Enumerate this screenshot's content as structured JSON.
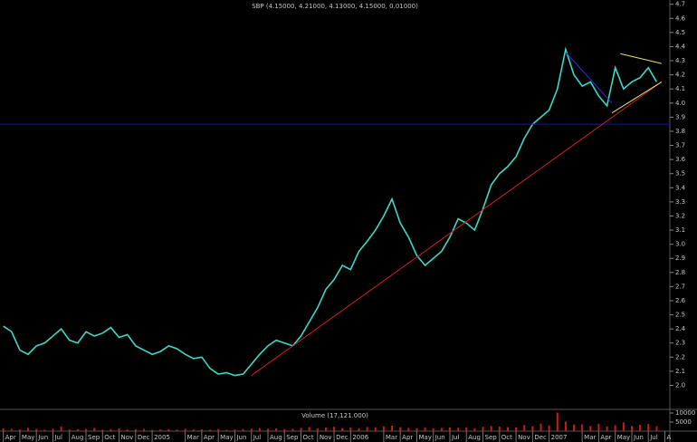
{
  "chart_data": [
    {
      "type": "line",
      "title": "SBP (4.15000, 4.21000, 4.13000, 4.15000, 0.01000)",
      "color": "#3fd8c8",
      "x": [
        0,
        0.5,
        1,
        1.5,
        2,
        2.5,
        3,
        3.5,
        4,
        4.5,
        5,
        5.5,
        6,
        6.5,
        7,
        7.5,
        8,
        8.5,
        9,
        9.5,
        10,
        10.5,
        11,
        11.5,
        12,
        12.5,
        13,
        13.5,
        14,
        14.5,
        15,
        15.5,
        16,
        16.5,
        17,
        17.5,
        18,
        18.5,
        19,
        19.5,
        20,
        20.5,
        21,
        21.5,
        22,
        22.5,
        23,
        23.5,
        24,
        24.5,
        25,
        25.5,
        26,
        26.5,
        27,
        27.5,
        28,
        28.5,
        29,
        29.5,
        30,
        30.5,
        31,
        31.5,
        32,
        32.5,
        33,
        33.5,
        34,
        34.5,
        35,
        35.5,
        36,
        36.5,
        37,
        37.5,
        38,
        38.5,
        39,
        39.5
      ],
      "values": [
        2.42,
        2.38,
        2.25,
        2.22,
        2.28,
        2.3,
        2.35,
        2.4,
        2.32,
        2.3,
        2.38,
        2.35,
        2.37,
        2.41,
        2.34,
        2.36,
        2.28,
        2.25,
        2.22,
        2.24,
        2.28,
        2.26,
        2.22,
        2.19,
        2.2,
        2.12,
        2.08,
        2.09,
        2.07,
        2.08,
        2.15,
        2.22,
        2.28,
        2.32,
        2.3,
        2.28,
        2.35,
        2.45,
        2.55,
        2.68,
        2.75,
        2.85,
        2.82,
        2.95,
        3.02,
        3.1,
        3.2,
        3.32,
        3.15,
        3.05,
        2.92,
        2.85,
        2.9,
        2.95,
        3.05,
        3.18,
        3.15,
        3.1,
        3.25,
        3.42,
        3.5,
        3.55,
        3.62,
        3.75,
        3.85,
        3.9,
        3.95,
        4.1,
        4.38,
        4.2,
        4.12,
        4.15,
        4.05,
        3.98,
        4.25,
        4.1,
        4.15,
        4.18,
        4.25,
        4.15
      ],
      "xlim": [
        -0.2,
        40.3
      ],
      "ylim": [
        1.83,
        4.73
      ],
      "xticks": [
        {
          "value": 0,
          "label": "Apr"
        },
        {
          "value": 1,
          "label": "May"
        },
        {
          "value": 2,
          "label": "Jun"
        },
        {
          "value": 3,
          "label": "Jul"
        },
        {
          "value": 4,
          "label": "Aug"
        },
        {
          "value": 5,
          "label": "Sep"
        },
        {
          "value": 6,
          "label": "Oct"
        },
        {
          "value": 7,
          "label": "Nov"
        },
        {
          "value": 8,
          "label": "Dec"
        },
        {
          "value": 9,
          "label": "2005"
        },
        {
          "value": 11,
          "label": "Mar"
        },
        {
          "value": 12,
          "label": "Apr"
        },
        {
          "value": 13,
          "label": "May"
        },
        {
          "value": 14,
          "label": "Jun"
        },
        {
          "value": 15,
          "label": "Jul"
        },
        {
          "value": 16,
          "label": "Aug"
        },
        {
          "value": 17,
          "label": "Sep"
        },
        {
          "value": 18,
          "label": "Oct"
        },
        {
          "value": 19,
          "label": "Nov"
        },
        {
          "value": 20,
          "label": "Dec"
        },
        {
          "value": 21,
          "label": "2006"
        },
        {
          "value": 23,
          "label": "Mar"
        },
        {
          "value": 24,
          "label": "Apr"
        },
        {
          "value": 25,
          "label": "May"
        },
        {
          "value": 26,
          "label": "Jun"
        },
        {
          "value": 27,
          "label": "Jul"
        },
        {
          "value": 28,
          "label": "Aug"
        },
        {
          "value": 29,
          "label": "Sep"
        },
        {
          "value": 30,
          "label": "Oct"
        },
        {
          "value": 31,
          "label": "Nov"
        },
        {
          "value": 32,
          "label": "Dec"
        },
        {
          "value": 33,
          "label": "2007"
        },
        {
          "value": 35,
          "label": "Mar"
        },
        {
          "value": 36,
          "label": "Apr"
        },
        {
          "value": 37,
          "label": "May"
        },
        {
          "value": 38,
          "label": "Jun"
        },
        {
          "value": 39,
          "label": "Jul"
        },
        {
          "value": 40,
          "label": "A"
        }
      ],
      "yticks": [
        {
          "value": 2,
          "label": "2.0"
        },
        2.1,
        2.2,
        2.3,
        2.4,
        2.5,
        2.6,
        2.7,
        2.8,
        2.9,
        {
          "value": 3,
          "label": "3.0"
        },
        3.1,
        3.2,
        3.3,
        3.4,
        3.5,
        3.6,
        3.7,
        3.8,
        3.9,
        {
          "value": 4,
          "label": "4.0"
        },
        4.1,
        4.2,
        4.3,
        4.4,
        4.5,
        4.6,
        4.7
      ],
      "lines": [
        {
          "color": "#1010d0",
          "x": [
            -0.2,
            40.3
          ],
          "y": [
            3.85,
            3.85
          ]
        },
        {
          "color": "#d02020",
          "x": [
            15,
            39.8
          ],
          "y": [
            2.07,
            4.15
          ]
        },
        {
          "color": "#e8e070",
          "x": [
            36.8,
            39.8
          ],
          "y": [
            3.93,
            4.15
          ]
        },
        {
          "color": "#e8e070",
          "x": [
            37.3,
            39.8
          ],
          "y": [
            4.35,
            4.28
          ]
        },
        {
          "color": "#3030e0",
          "x": [
            34,
            36.8
          ],
          "y": [
            4.36,
            4.0
          ]
        }
      ]
    },
    {
      "type": "bar",
      "title": "Volume (17,121.000)",
      "color": "#d01818",
      "x": [
        0,
        0.5,
        1,
        1.5,
        2,
        2.5,
        3,
        3.5,
        4,
        4.5,
        5,
        5.5,
        6,
        6.5,
        7,
        7.5,
        8,
        8.5,
        9,
        9.5,
        10,
        10.5,
        11,
        11.5,
        12,
        12.5,
        13,
        13.5,
        14,
        14.5,
        15,
        15.5,
        16,
        16.5,
        17,
        17.5,
        18,
        18.5,
        19,
        19.5,
        20,
        20.5,
        21,
        21.5,
        22,
        22.5,
        23,
        23.5,
        24,
        24.5,
        25,
        25.5,
        26,
        26.5,
        27,
        27.5,
        28,
        28.5,
        29,
        29.5,
        30,
        30.5,
        31,
        31.5,
        32,
        32.5,
        33,
        33.5,
        34,
        34.5,
        35,
        35.5,
        36,
        36.5,
        37,
        37.5,
        38,
        38.5,
        39,
        39.5
      ],
      "values": [
        1500,
        1200,
        900,
        1800,
        1100,
        800,
        1300,
        2600,
        900,
        1000,
        1200,
        1700,
        800,
        1100,
        1500,
        900,
        1000,
        1200,
        700,
        900,
        1100,
        800,
        1300,
        900,
        1000,
        800,
        1200,
        700,
        900,
        1100,
        1300,
        1600,
        1200,
        1500,
        1100,
        1300,
        1800,
        2200,
        1600,
        1900,
        2400,
        1700,
        2000,
        1500,
        2300,
        2100,
        2600,
        3000,
        2200,
        1800,
        1600,
        1900,
        1500,
        1700,
        2100,
        1800,
        2000,
        1600,
        2400,
        2800,
        2500,
        2200,
        2100,
        3400,
        2700,
        4200,
        3100,
        10200,
        5200,
        3600,
        3800,
        2900,
        4100,
        2600,
        3300,
        4800,
        2900,
        3500,
        3900,
        2700
      ],
      "ylim": [
        0,
        12000
      ],
      "yticks": [
        10000,
        5000
      ]
    }
  ]
}
